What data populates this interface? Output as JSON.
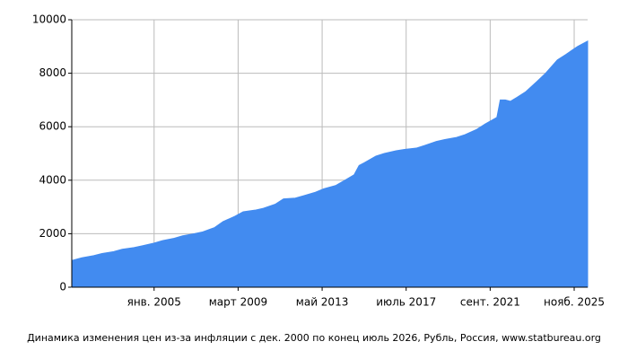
{
  "chart_data": {
    "type": "area",
    "title": "Динамика изменения цен из-за инфляции с дек. 2000 по конец июль 2026, Рубль, Россия, www.statbureau.org",
    "x": [
      "2000-12",
      "2001-06",
      "2002-01",
      "2002-06",
      "2003-01",
      "2003-06",
      "2004-01",
      "2004-06",
      "2005-01",
      "2005-06",
      "2006-01",
      "2006-06",
      "2007-01",
      "2007-06",
      "2008-01",
      "2008-06",
      "2009-01",
      "2009-06",
      "2010-01",
      "2010-06",
      "2011-01",
      "2011-06",
      "2012-01",
      "2012-06",
      "2013-01",
      "2013-06",
      "2014-01",
      "2014-06",
      "2014-12",
      "2015-03",
      "2015-06",
      "2016-01",
      "2016-06",
      "2017-01",
      "2017-06",
      "2018-01",
      "2018-06",
      "2019-01",
      "2019-06",
      "2020-01",
      "2020-06",
      "2021-01",
      "2021-06",
      "2022-01",
      "2022-03",
      "2022-06",
      "2022-09",
      "2023-01",
      "2023-06",
      "2024-01",
      "2024-06",
      "2025-01",
      "2025-06",
      "2026-01",
      "2026-07"
    ],
    "values": [
      1000,
      1100,
      1180,
      1260,
      1330,
      1420,
      1480,
      1550,
      1650,
      1740,
      1830,
      1920,
      2000,
      2070,
      2230,
      2450,
      2650,
      2820,
      2880,
      2950,
      3100,
      3300,
      3330,
      3420,
      3550,
      3680,
      3800,
      3980,
      4200,
      4550,
      4650,
      4900,
      5000,
      5100,
      5150,
      5200,
      5300,
      5450,
      5520,
      5600,
      5700,
      5900,
      6100,
      6350,
      7000,
      7000,
      6950,
      7100,
      7300,
      7700,
      8000,
      8500,
      8700,
      9000,
      9200
    ],
    "color": "#428bf0",
    "xlim": [
      "2000-12",
      "2026-07"
    ],
    "xticks": [
      {
        "value": "2005-01",
        "label": "янв. 2005"
      },
      {
        "value": "2009-03",
        "label": "март 2009"
      },
      {
        "value": "2013-05",
        "label": "май 2013"
      },
      {
        "value": "2017-07",
        "label": "июль 2017"
      },
      {
        "value": "2021-09",
        "label": "сент. 2021"
      },
      {
        "value": "2025-11",
        "label": "нояб. 2025"
      }
    ],
    "ylim": [
      0,
      10000
    ],
    "yticks": [
      0,
      2000,
      4000,
      6000,
      8000,
      10000
    ],
    "grid": true
  }
}
